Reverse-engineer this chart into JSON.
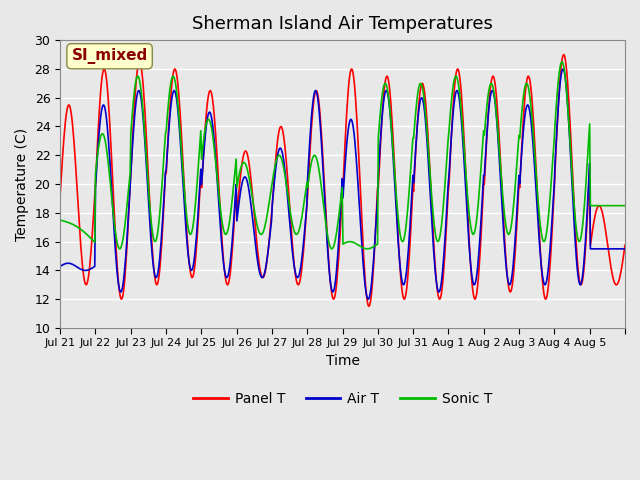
{
  "title": "Sherman Island Air Temperatures",
  "xlabel": "Time",
  "ylabel": "Temperature (C)",
  "ylim": [
    10,
    30
  ],
  "yticks": [
    10,
    12,
    14,
    16,
    18,
    20,
    22,
    24,
    26,
    28,
    30
  ],
  "annotation_text": "SI_mixed",
  "annotation_color": "#8B0000",
  "annotation_bg": "#FFFFCC",
  "bg_color": "#E8E8E8",
  "plot_bg": "#E8E8E8",
  "grid_color": "#FFFFFF",
  "line_colors": {
    "panel": "#FF0000",
    "air": "#0000CC",
    "sonic": "#00BB00"
  },
  "legend_labels": [
    "Panel T",
    "Air T",
    "Sonic T"
  ],
  "x_tick_labels": [
    "Jul 21",
    "Jul 22",
    "Jul 23",
    "Jul 24",
    "Jul 25",
    "Jul 26",
    "Jul 27",
    "Jul 28",
    "Jul 29",
    "Jul 30",
    "Jul 31",
    "Aug 1",
    "Aug 2",
    "Aug 3",
    "Aug 4",
    "Aug 5"
  ],
  "n_days": 16,
  "start_day": 0,
  "points_per_day": 48
}
